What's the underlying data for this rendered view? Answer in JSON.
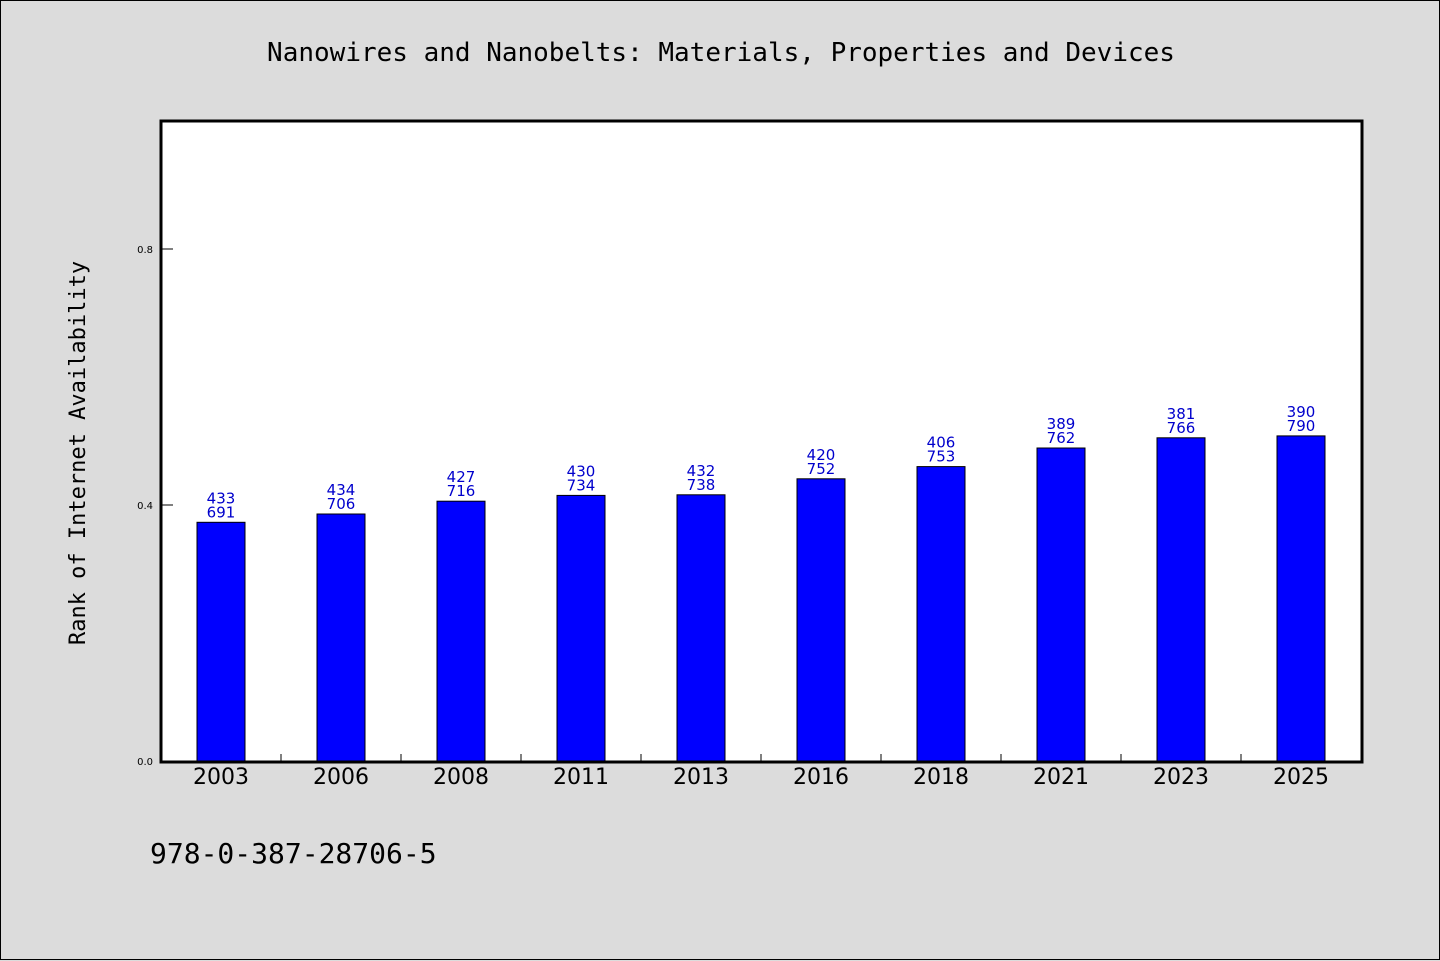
{
  "colors": {
    "background": "#dcdcdc",
    "plot_area": "#ffffff",
    "bar": "#0000ff",
    "data_label": "#0000cc"
  },
  "footer": {
    "isbn": "978-0-387-28706-5"
  },
  "chart_data": {
    "type": "bar",
    "title": "Nanowires and Nanobelts: Materials, Properties and Devices",
    "xlabel": "",
    "ylabel": "Rank of Internet Availability",
    "ylim": [
      0,
      1.0
    ],
    "yticks": [
      0.0,
      0.4,
      0.8
    ],
    "ytick_labels": [
      "0.0",
      "0.4",
      "0.8"
    ],
    "grid": false,
    "legend": "none",
    "categories": [
      "2003",
      "2006",
      "2008",
      "2011",
      "2013",
      "2016",
      "2018",
      "2021",
      "2023",
      "2025"
    ],
    "values": [
      0.373,
      0.386,
      0.406,
      0.415,
      0.416,
      0.441,
      0.46,
      0.489,
      0.505,
      0.508
    ],
    "label_top": [
      "433",
      "434",
      "427",
      "430",
      "432",
      "420",
      "406",
      "389",
      "381",
      "390"
    ],
    "label_bottom": [
      "691",
      "706",
      "716",
      "734",
      "738",
      "752",
      "753",
      "762",
      "766",
      "790"
    ]
  }
}
